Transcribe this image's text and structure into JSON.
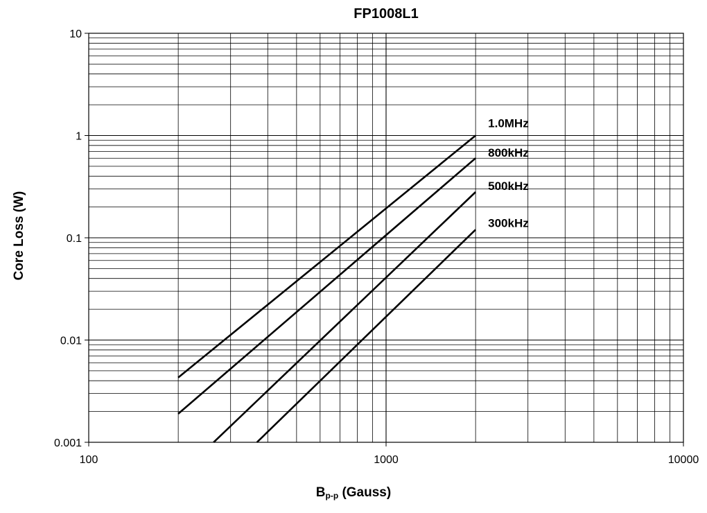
{
  "chart_data": {
    "type": "line",
    "title": "FP1008L1",
    "xlabel": {
      "main": "B",
      "sub": "p-p",
      "rest": " (Gauss)"
    },
    "ylabel": "Core Loss (W)",
    "x_scale": "log",
    "y_scale": "log",
    "xlim": [
      100,
      10000
    ],
    "ylim": [
      0.001,
      10
    ],
    "x_ticks": [
      "100",
      "1000",
      "10000"
    ],
    "y_ticks": [
      "0.001",
      "0.01",
      "0.1",
      "1",
      "10"
    ],
    "grid": true,
    "series": [
      {
        "name": "1.0MHz",
        "x": [
          200,
          2000
        ],
        "y": [
          0.0043,
          1.0
        ]
      },
      {
        "name": "800kHz",
        "x": [
          200,
          2000
        ],
        "y": [
          0.0019,
          0.6
        ]
      },
      {
        "name": "500kHz",
        "x": [
          263,
          2000
        ],
        "y": [
          0.001,
          0.28
        ]
      },
      {
        "name": "300kHz",
        "x": [
          368,
          2000
        ],
        "y": [
          0.001,
          0.12
        ]
      }
    ]
  }
}
